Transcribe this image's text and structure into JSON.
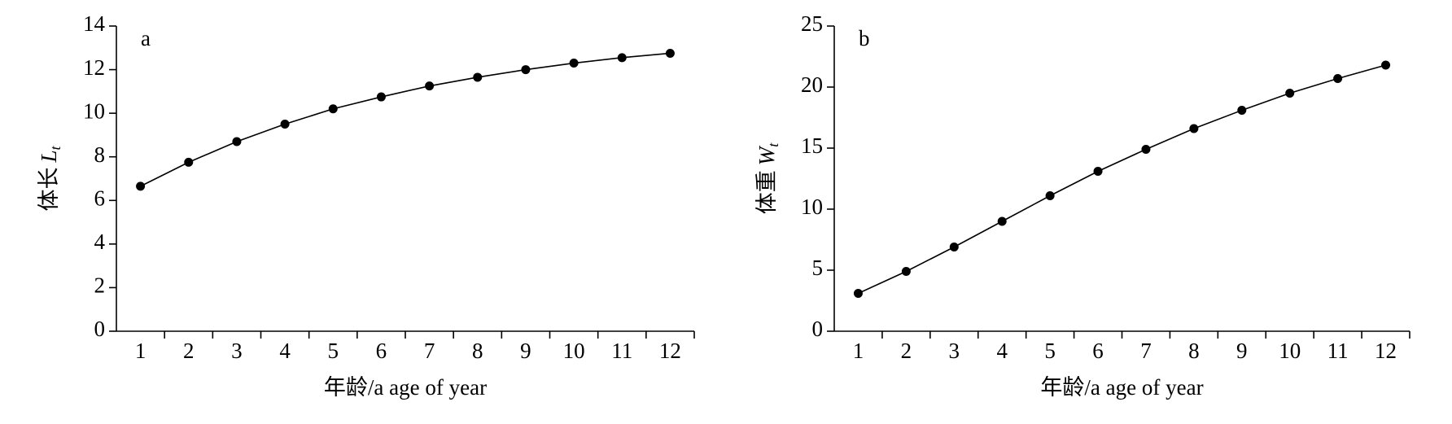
{
  "chart_data": [
    {
      "type": "line",
      "panel_label": "a",
      "ylabel": "体长",
      "ylabel_symbol": "L",
      "ylabel_subscript": "t",
      "xlabel": "年龄/a age of year",
      "categories": [
        1,
        2,
        3,
        4,
        5,
        6,
        7,
        8,
        9,
        10,
        11,
        12
      ],
      "values": [
        6.65,
        7.75,
        8.7,
        9.5,
        10.2,
        10.75,
        11.25,
        11.65,
        12.0,
        12.3,
        12.55,
        12.75
      ],
      "color": "#000000",
      "ylim": [
        0,
        14
      ],
      "yticks": [
        0,
        2,
        4,
        6,
        8,
        10,
        12,
        14
      ]
    },
    {
      "type": "line",
      "panel_label": "b",
      "ylabel": "体重",
      "ylabel_symbol": "W",
      "ylabel_subscript": "t",
      "xlabel": "年龄/a age of year",
      "categories": [
        1,
        2,
        3,
        4,
        5,
        6,
        7,
        8,
        9,
        10,
        11,
        12
      ],
      "values": [
        3.1,
        4.9,
        6.9,
        9.0,
        11.1,
        13.1,
        14.9,
        16.6,
        18.1,
        19.5,
        20.7,
        21.8
      ],
      "color": "#000000",
      "ylim": [
        0,
        25
      ],
      "yticks": [
        0,
        5,
        10,
        15,
        20,
        25
      ]
    }
  ]
}
